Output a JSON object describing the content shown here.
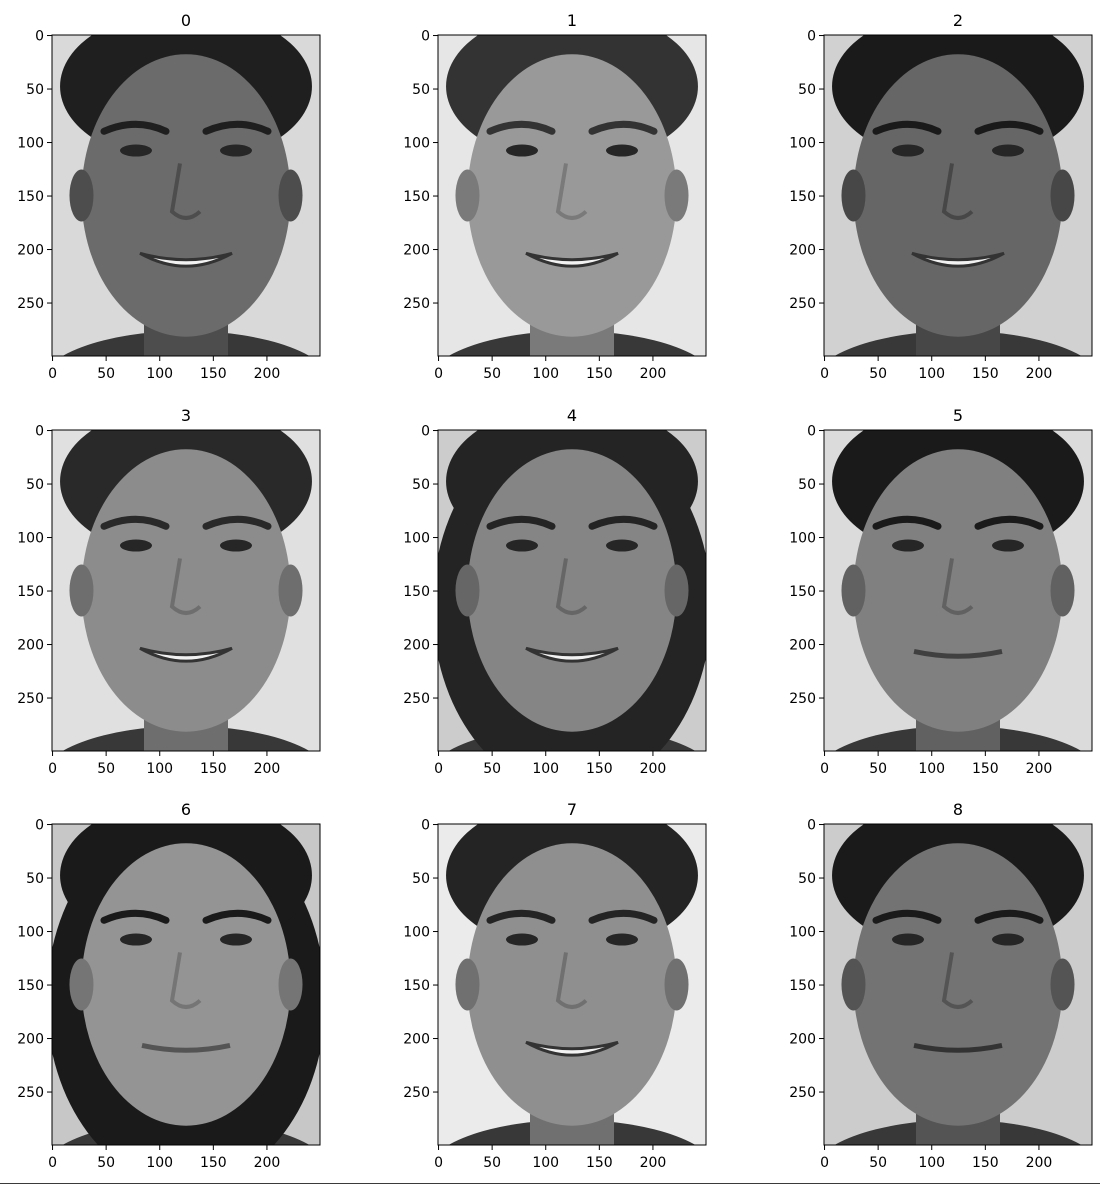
{
  "chart_data": {
    "type": "image-grid",
    "rows": 3,
    "cols": 3,
    "image_height": 300,
    "image_width": 250,
    "xticks": [
      0,
      50,
      100,
      150,
      200
    ],
    "yticks": [
      0,
      50,
      100,
      150,
      200,
      250
    ],
    "colormap": "gray",
    "panels": [
      {
        "title": "0",
        "tone": 0.42,
        "hair": 0.12,
        "smile": true,
        "long_hair": false,
        "background": 0.85
      },
      {
        "title": "1",
        "tone": 0.6,
        "hair": 0.2,
        "smile": true,
        "long_hair": false,
        "background": 0.9
      },
      {
        "title": "2",
        "tone": 0.4,
        "hair": 0.1,
        "smile": true,
        "long_hair": false,
        "background": 0.82
      },
      {
        "title": "3",
        "tone": 0.55,
        "hair": 0.16,
        "smile": true,
        "long_hair": false,
        "background": 0.88
      },
      {
        "title": "4",
        "tone": 0.52,
        "hair": 0.14,
        "smile": true,
        "long_hair": true,
        "background": 0.8
      },
      {
        "title": "5",
        "tone": 0.5,
        "hair": 0.1,
        "smile": false,
        "long_hair": false,
        "background": 0.86
      },
      {
        "title": "6",
        "tone": 0.58,
        "hair": 0.1,
        "smile": false,
        "long_hair": true,
        "background": 0.78
      },
      {
        "title": "7",
        "tone": 0.56,
        "hair": 0.14,
        "smile": true,
        "long_hair": false,
        "background": 0.92
      },
      {
        "title": "8",
        "tone": 0.45,
        "hair": 0.1,
        "smile": false,
        "long_hair": false,
        "background": 0.8
      }
    ]
  }
}
